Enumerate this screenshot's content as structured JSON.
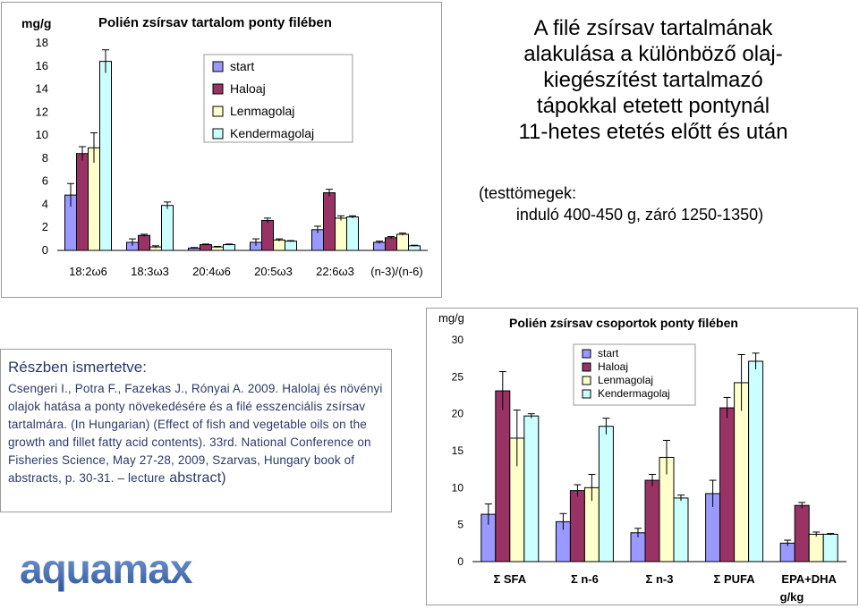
{
  "left_chart": {
    "unit": "mg/g",
    "title": "Polién zsírsav tartalom ponty filében",
    "series_colors": [
      "#9999ff",
      "#993366",
      "#ffffcc",
      "#ccffff"
    ]
  },
  "right_chart": {
    "unit": "mg/g",
    "title": "Polién zsírsav csoportok ponty filében",
    "extra_xlabel_line": "g/kg",
    "series_colors": [
      "#9999ff",
      "#993366",
      "#ffffcc",
      "#ccffff"
    ]
  },
  "heading": {
    "title_lines": [
      "A filé zsírsav tartalmának",
      "alakulása a különböző olaj-",
      "kiegészítést tartalmazó",
      "tápokkal etetett pontynál",
      "11-hetes etetés előtt és után"
    ],
    "subtitle_lines": [
      "(testtömegek:",
      "induló 400-450 g, záró 1250-1350)"
    ]
  },
  "reference": {
    "heading": "Részben ismertetve:",
    "text_main": "Csengeri I., Potra F., Fazekas J., Rónyai A. 2009. Halolaj és növényi olajok hatása a ponty növekedésére és a filé esszenciális zsírsav tartalmára. (In Hungarian) (Effect of fish and vegetable oils on the growth and fillet fatty acid contents). 33rd. National Conference on Fisheries Science, May 27-28, 2009, Szarvas, Hungary book of abstracts, p. 30-31. – lecture",
    "text_end": " abstract)"
  },
  "logo": {
    "text": "aquamax",
    "color": "#3a5fa8"
  },
  "chart_data": [
    {
      "type": "bar",
      "title": "Polién zsírsav tartalom ponty filében",
      "ylabel": "mg/g",
      "categories": [
        "18:2ω6",
        "18:3ω3",
        "20:4ω6",
        "20:5ω3",
        "22:6ω3",
        "(n-3)/(n-6)"
      ],
      "ylim": [
        0,
        18
      ],
      "yticks": [
        "0",
        "2",
        "4",
        "6",
        "8",
        "10",
        "12",
        "14",
        "16",
        "18"
      ],
      "legend": "top-center",
      "series": [
        {
          "name": "start",
          "values": [
            4.8,
            0.7,
            0.2,
            0.7,
            1.8,
            0.7
          ],
          "err": [
            1.0,
            0.3,
            0.05,
            0.3,
            0.3,
            0.1
          ]
        },
        {
          "name": "Haloaj",
          "values": [
            8.4,
            1.3,
            0.5,
            2.6,
            5.0,
            1.1
          ],
          "err": [
            0.6,
            0.1,
            0.05,
            0.2,
            0.3,
            0.1
          ]
        },
        {
          "name": "Lenmagolaj",
          "values": [
            8.9,
            0.3,
            0.3,
            0.9,
            2.8,
            1.4
          ],
          "err": [
            1.3,
            0.1,
            0.05,
            0.1,
            0.2,
            0.1
          ]
        },
        {
          "name": "Kendermagolaj",
          "values": [
            16.4,
            3.9,
            0.5,
            0.8,
            2.9,
            0.4
          ],
          "err": [
            1.0,
            0.3,
            0.05,
            0.05,
            0.1,
            0.05
          ]
        }
      ]
    },
    {
      "type": "bar",
      "title": "Polién zsírsav csoportok ponty filében",
      "ylabel": "mg/g",
      "categories": [
        "Σ SFA",
        "Σ n-6",
        "Σ n-3",
        "Σ PUFA",
        "EPA+DHA"
      ],
      "ylim": [
        0,
        30
      ],
      "yticks": [
        "0",
        "5",
        "10",
        "15",
        "20",
        "25",
        "30"
      ],
      "legend": "top-center",
      "series": [
        {
          "name": "start",
          "values": [
            6.4,
            5.4,
            3.9,
            9.2,
            2.5
          ],
          "err": [
            1.4,
            1.1,
            0.6,
            1.8,
            0.4
          ]
        },
        {
          "name": "Haloaj",
          "values": [
            23.1,
            9.6,
            11.0,
            20.8,
            7.6
          ],
          "err": [
            2.6,
            0.8,
            0.8,
            1.4,
            0.4
          ]
        },
        {
          "name": "Lenmagolaj",
          "values": [
            16.7,
            10.0,
            14.1,
            24.2,
            3.7
          ],
          "err": [
            3.8,
            1.8,
            2.3,
            3.8,
            0.3
          ]
        },
        {
          "name": "Kendermagolaj",
          "values": [
            19.7,
            18.3,
            8.6,
            27.1,
            3.7
          ],
          "err": [
            0.3,
            1.1,
            0.4,
            1.1,
            0.1
          ]
        }
      ]
    }
  ]
}
